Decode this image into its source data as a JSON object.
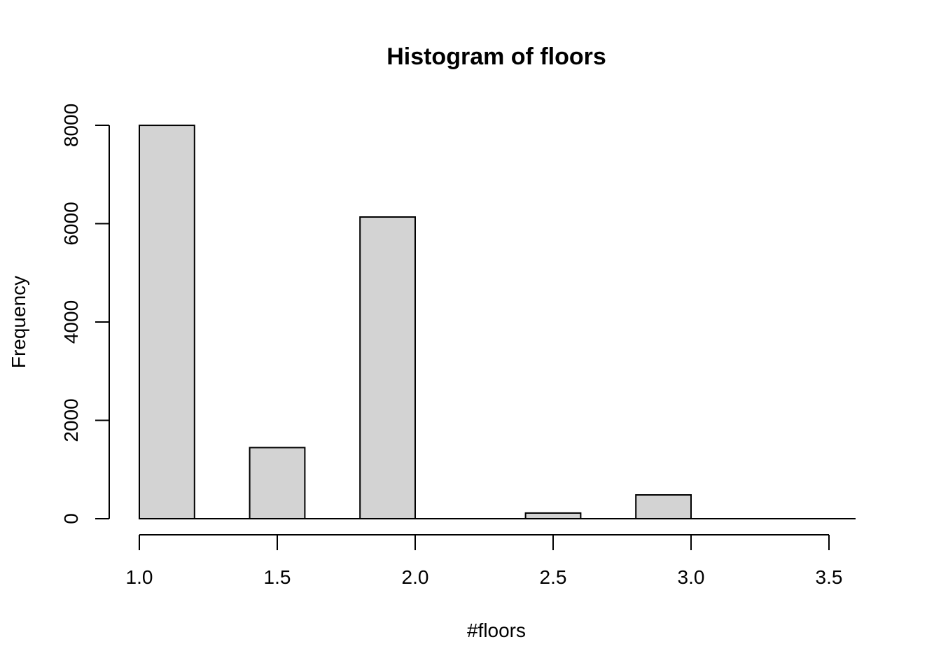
{
  "chart_data": {
    "type": "bar",
    "title": "Histogram of floors",
    "xlabel": "#floors",
    "ylabel": "Frequency",
    "bins": [
      {
        "x0": 1.0,
        "x1": 1.2,
        "value": 7999
      },
      {
        "x0": 1.4,
        "x1": 1.6,
        "value": 1446
      },
      {
        "x0": 1.8,
        "x1": 2.0,
        "value": 6135
      },
      {
        "x0": 2.4,
        "x1": 2.6,
        "value": 115
      },
      {
        "x0": 2.8,
        "x1": 3.0,
        "value": 484
      },
      {
        "x0": 3.4,
        "x1": 3.6,
        "value": 0
      }
    ],
    "xlim": [
      1.0,
      3.6
    ],
    "ylim": [
      0,
      8000
    ],
    "xticks": [
      "1.0",
      "1.5",
      "2.0",
      "2.5",
      "3.0",
      "3.5"
    ],
    "yticks": [
      "0",
      "2000",
      "4000",
      "6000",
      "8000"
    ],
    "grid": false,
    "bar_color": "#d3d3d3"
  }
}
